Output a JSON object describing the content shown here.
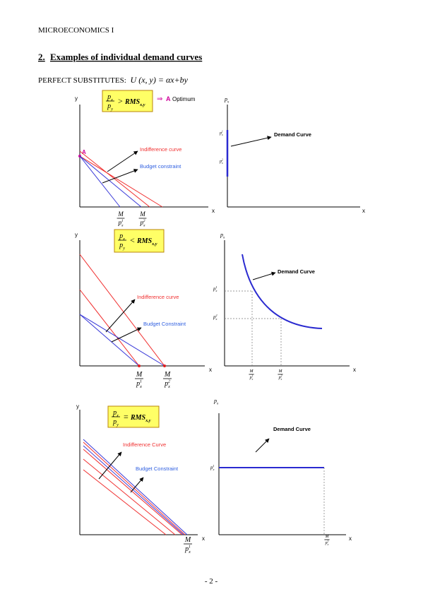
{
  "header": "MICROECONOMICS I",
  "heading": {
    "number": "2.",
    "title": "Examples of individual demand curves"
  },
  "intro": {
    "label": "PERFECT SUBSTITUTES:",
    "formula": "U (x, y) = αx+by"
  },
  "panels": [
    {
      "condition": {
        "frac": {
          "num": {
            "base": "p",
            "sub": "x"
          },
          "den": {
            "base": "p",
            "sub": "y"
          }
        },
        "op": ">",
        "rhs": {
          "base": "RMS",
          "sub": "x,y"
        }
      },
      "implies": "⇒",
      "point": "A",
      "note": "Optimum",
      "left": {
        "y_label": "y",
        "x_label": "x",
        "curve_labels": [
          "Indifference curve",
          "Budget constraint"
        ],
        "intercepts": [
          {
            "num": "M",
            "den": {
              "base": "p",
              "sub": "x",
              "sup": "1"
            }
          },
          {
            "num": "M",
            "den": {
              "base": "p",
              "sub": "x",
              "sup": "2"
            }
          }
        ]
      },
      "right": {
        "y_label": {
          "base": "p",
          "sub": "x"
        },
        "x_label": "x",
        "curve_label": "Demand Curve",
        "prices": [
          {
            "base": "p",
            "sub": "x",
            "sup": "1"
          },
          {
            "base": "p",
            "sub": "x",
            "sup": "2"
          }
        ]
      }
    },
    {
      "condition": {
        "frac": {
          "num": {
            "base": "p",
            "sub": "x"
          },
          "den": {
            "base": "p",
            "sub": "y"
          }
        },
        "op": "<",
        "rhs": {
          "base": "RMS",
          "sub": "x,y"
        }
      },
      "left": {
        "y_label": "y",
        "x_label": "x",
        "curve_labels": [
          "Indifference curve",
          "Budget Constraint"
        ],
        "intercepts": [
          {
            "num": "M",
            "den": {
              "base": "p",
              "sub": "x",
              "sup": "1"
            }
          },
          {
            "num": "M",
            "den": {
              "base": "p",
              "sub": "x",
              "sup": "2"
            }
          }
        ]
      },
      "right": {
        "y_label": {
          "base": "p",
          "sub": "x"
        },
        "x_label": "x",
        "curve_label": "Demand Curve",
        "prices": [
          {
            "base": "p",
            "sub": "x",
            "sup": "1"
          },
          {
            "base": "p",
            "sub": "x",
            "sup": "2"
          }
        ],
        "quantities": [
          {
            "num": "M",
            "den": {
              "base": "p",
              "sub": "x",
              "sup": "1"
            }
          },
          {
            "num": "M",
            "den": {
              "base": "p",
              "sub": "x",
              "sup": "2"
            }
          }
        ]
      }
    },
    {
      "condition": {
        "frac": {
          "num": {
            "base": "p",
            "sub": "x"
          },
          "den": {
            "base": "p",
            "sub": "y"
          }
        },
        "op": "=",
        "rhs": {
          "base": "RMS",
          "sub": "x,y"
        }
      },
      "left": {
        "y_label": "y",
        "x_label": "x",
        "curve_labels": [
          "Indifference Curve",
          "Budget Constraint"
        ],
        "intercepts": [
          {
            "num": "M",
            "den": {
              "base": "p",
              "sub": "x",
              "sup": "1"
            }
          }
        ]
      },
      "right": {
        "y_label": {
          "base": "p",
          "sub": "x"
        },
        "x_label": "x",
        "curve_label": "Demand Curve",
        "prices": [
          {
            "base": "p",
            "sub": "x",
            "sup": "1"
          }
        ],
        "quantities": [
          {
            "num": "M",
            "den": {
              "base": "p",
              "sub": "x",
              "sup": "1"
            }
          }
        ]
      }
    }
  ],
  "page_number": "- 2 -"
}
